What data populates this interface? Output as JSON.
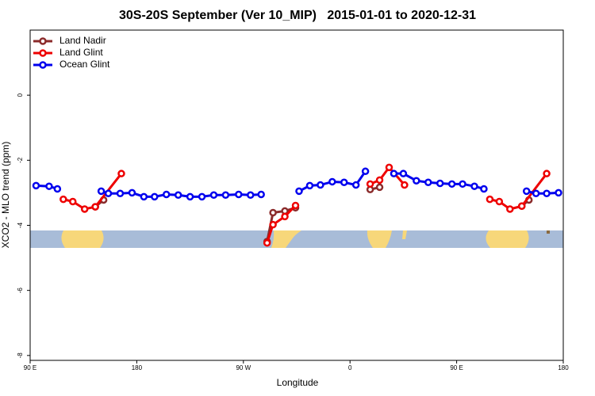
{
  "chart_data": {
    "type": "line",
    "title": "30S-20S September (Ver 10_MIP)   2015-01-01 to 2020-12-31",
    "xlabel": "Longitude",
    "ylabel": "XCO2 - MLO trend (ppm)",
    "xlim": [
      90,
      540
    ],
    "ylim": [
      -8.15,
      2
    ],
    "xticks": [
      {
        "value": 90,
        "label": "90 E"
      },
      180,
      {
        "value": 270,
        "label": "90 W"
      },
      {
        "value": 360,
        "label": "0"
      },
      {
        "value": 450,
        "label": "90 E"
      },
      {
        "value": 540,
        "label": "180"
      }
    ],
    "yticks": [
      0,
      -2,
      -4,
      -6,
      -8
    ],
    "legend": "top-left",
    "series": [
      {
        "name": "Land Nadir",
        "color": "#8b2b2b",
        "x": [
          145,
          152,
          160,
          290,
          295,
          305,
          314,
          340,
          377,
          385,
          393,
          500,
          505,
          511
        ],
        "values": [
          -3.43,
          -3.22,
          null,
          -4.5,
          -3.61,
          -3.56,
          -3.46,
          null,
          -2.9,
          -2.83,
          null,
          null,
          -3.41,
          -3.22
        ]
      },
      {
        "name": "Land Glint",
        "color": "#ee0000",
        "x": [
          118,
          126,
          136,
          145,
          167,
          200,
          290,
          295,
          305,
          314,
          340,
          377,
          385,
          393,
          406,
          450,
          478,
          486,
          495,
          505,
          526
        ],
        "values": [
          -3.2,
          -3.27,
          -3.5,
          -3.43,
          -2.41,
          null,
          -4.54,
          -3.98,
          -3.73,
          -3.39,
          null,
          -2.73,
          -2.61,
          -2.22,
          -2.76,
          null,
          -3.2,
          -3.27,
          -3.5,
          -3.41,
          -2.41
        ]
      },
      {
        "name": "Ocean Glint",
        "color": "#0000ee",
        "x": [
          95,
          106,
          113,
          130,
          150,
          156,
          166,
          176,
          186,
          195,
          205,
          215,
          225,
          235,
          245,
          255,
          266,
          276,
          285,
          300,
          317,
          326,
          335,
          345,
          355,
          365,
          373,
          385,
          397,
          405,
          416,
          426,
          436,
          446,
          455,
          465,
          473,
          490,
          509,
          517,
          526,
          536
        ],
        "values": [
          -2.78,
          -2.8,
          -2.88,
          null,
          -2.95,
          -3.02,
          -3.02,
          -3.0,
          -3.12,
          -3.12,
          -3.05,
          -3.07,
          -3.12,
          -3.12,
          -3.07,
          -3.07,
          -3.05,
          -3.07,
          -3.05,
          null,
          -2.95,
          -2.78,
          -2.76,
          -2.66,
          -2.68,
          -2.76,
          -2.34,
          null,
          -2.41,
          -2.41,
          -2.63,
          -2.68,
          -2.71,
          -2.73,
          -2.73,
          -2.8,
          -2.88,
          null,
          -2.95,
          -3.02,
          -3.02,
          -3.0
        ]
      }
    ]
  }
}
